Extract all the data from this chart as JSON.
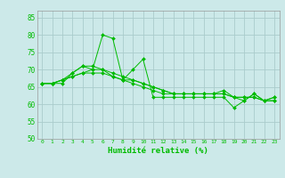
{
  "xlabel": "Humidité relative (%)",
  "xlim": [
    -0.5,
    23.5
  ],
  "ylim": [
    50,
    87
  ],
  "yticks": [
    50,
    55,
    60,
    65,
    70,
    75,
    80,
    85
  ],
  "xticks": [
    0,
    1,
    2,
    3,
    4,
    5,
    6,
    7,
    8,
    9,
    10,
    11,
    12,
    13,
    14,
    15,
    16,
    17,
    18,
    19,
    20,
    21,
    22,
    23
  ],
  "background_color": "#cce9e9",
  "grid_color": "#aacccc",
  "line_color": "#00bb00",
  "marker_color": "#00bb00",
  "series": [
    [
      66,
      66,
      66,
      69,
      71,
      70,
      80,
      79,
      67,
      70,
      73,
      62,
      62,
      62,
      62,
      62,
      62,
      62,
      62,
      59,
      61,
      63,
      61,
      62
    ],
    [
      66,
      66,
      67,
      68,
      69,
      69,
      69,
      68,
      67,
      66,
      65,
      64,
      63,
      63,
      63,
      63,
      63,
      63,
      63,
      62,
      62,
      62,
      61,
      61
    ],
    [
      66,
      66,
      67,
      69,
      71,
      71,
      70,
      68,
      67,
      67,
      66,
      65,
      64,
      63,
      63,
      63,
      63,
      63,
      63,
      62,
      62,
      62,
      61,
      61
    ],
    [
      66,
      66,
      67,
      68,
      69,
      70,
      70,
      69,
      68,
      67,
      66,
      65,
      64,
      63,
      63,
      63,
      63,
      63,
      64,
      62,
      61,
      63,
      61,
      62
    ]
  ]
}
